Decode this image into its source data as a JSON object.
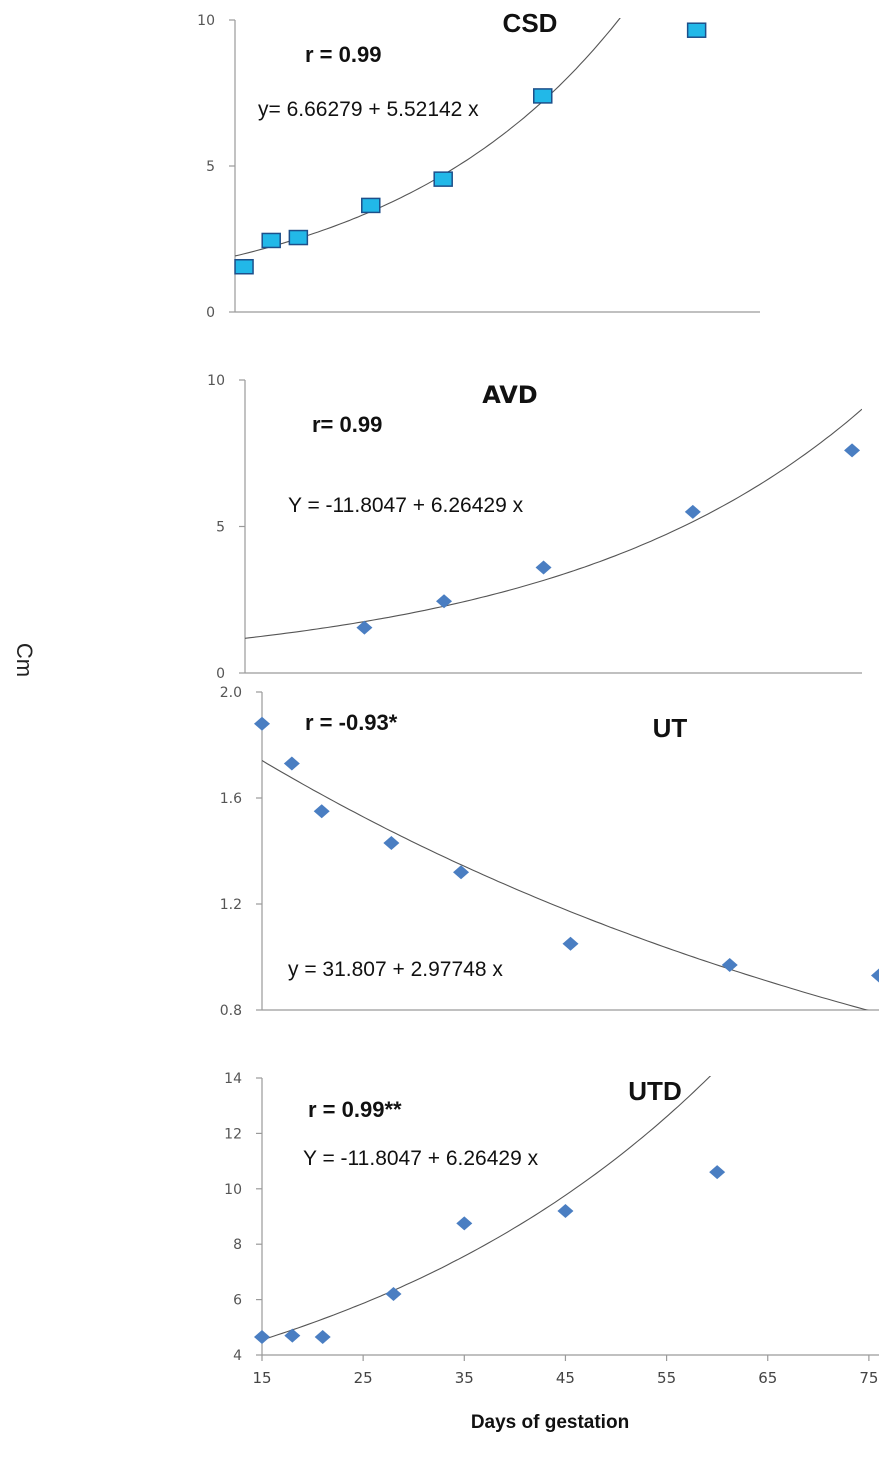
{
  "ylabel": "Cm",
  "xlabel": "Days of gestation",
  "chart_data": [
    {
      "type": "scatter",
      "title": "CSD",
      "r_label": "r = 0.99",
      "equation": "y= 6.66279 + 5.52142 x",
      "ylim": [
        0,
        10
      ],
      "yticks": [
        "0",
        "5",
        "10"
      ],
      "xlim": [
        12,
        70
      ],
      "points": [
        [
          13,
          1.55
        ],
        [
          16,
          2.45
        ],
        [
          19,
          2.55
        ],
        [
          27,
          3.65
        ],
        [
          35,
          4.55
        ],
        [
          46,
          7.4
        ],
        [
          63,
          9.65
        ]
      ],
      "trend": {
        "a": 1.2,
        "b": 0.039
      },
      "marker": "square",
      "marker_color": "#22b8e8"
    },
    {
      "type": "scatter",
      "title": "AVD",
      "r_label": "r= 0.99",
      "equation": "Y = -11.8047 + 6.26429 x",
      "ylim": [
        0,
        10
      ],
      "yticks": [
        "0",
        "5",
        "10"
      ],
      "xlim": [
        14,
        76
      ],
      "points": [
        [
          26,
          1.55
        ],
        [
          34,
          2.45
        ],
        [
          44,
          3.6
        ],
        [
          59,
          5.5
        ],
        [
          75,
          7.6
        ]
      ],
      "trend": {
        "a": 0.75,
        "b": 0.0327
      },
      "marker": "diamond",
      "marker_color": "#4a7ec2"
    },
    {
      "type": "scatter",
      "title": "UT",
      "r_label": "r = -0.93*",
      "equation": "y = 31.807 + 2.97748 x",
      "ylim": [
        0.8,
        2.0
      ],
      "yticks": [
        "0.8",
        "1.2",
        "1.6",
        "2.0"
      ],
      "xlim": [
        15,
        77
      ],
      "points": [
        [
          15,
          1.88
        ],
        [
          18,
          1.73
        ],
        [
          21,
          1.55
        ],
        [
          28,
          1.43
        ],
        [
          35,
          1.32
        ],
        [
          46,
          1.05
        ],
        [
          62,
          0.97
        ],
        [
          77,
          0.93
        ]
      ],
      "trend": {
        "a": 2.11,
        "b": -0.0128
      },
      "marker": "diamond",
      "marker_color": "#4a7ec2"
    },
    {
      "type": "scatter",
      "title": "UTD",
      "r_label": "r = 0.99**",
      "equation": "Y = -11.8047 + 6.26429 x",
      "ylim": [
        4,
        14
      ],
      "yticks": [
        "4",
        "6",
        "8",
        "10",
        "12",
        "14"
      ],
      "xlim": [
        15,
        76
      ],
      "xticks": [
        "15",
        "25",
        "35",
        "45",
        "55",
        "65",
        "75"
      ],
      "points": [
        [
          15,
          4.65
        ],
        [
          18,
          4.7
        ],
        [
          21,
          4.65
        ],
        [
          28,
          6.2
        ],
        [
          35,
          8.75
        ],
        [
          45,
          9.2
        ],
        [
          60,
          10.6
        ]
      ],
      "trend": {
        "a": 3.1,
        "b": 0.0255
      },
      "marker": "diamond",
      "marker_color": "#4a7ec2"
    }
  ]
}
